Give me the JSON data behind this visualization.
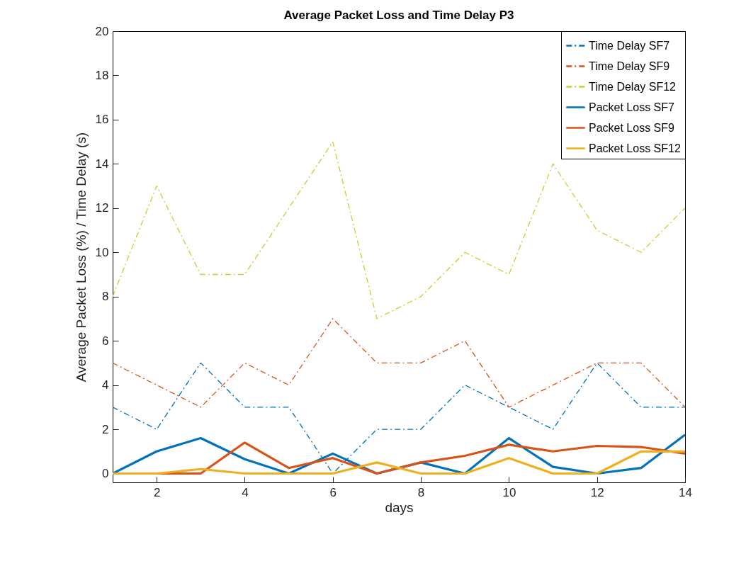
{
  "chart_data": {
    "type": "line",
    "title": "Average Packet Loss and Time Delay P3",
    "xlabel": "days",
    "ylabel": "Average Packet Loss (%) / Time Delay (s)",
    "x": [
      1,
      2,
      3,
      4,
      5,
      6,
      7,
      8,
      9,
      10,
      11,
      12,
      13,
      14
    ],
    "series": [
      {
        "name": "Time Delay SF7",
        "color": "#0072bd",
        "line_style": "dashed",
        "values": [
          3,
          2,
          5,
          3,
          3,
          0,
          2,
          2,
          4,
          3,
          2,
          5,
          3,
          3
        ]
      },
      {
        "name": "Time Delay SF9",
        "color": "#d95319",
        "line_style": "dashed",
        "values": [
          5,
          4,
          3,
          5,
          4,
          7,
          5,
          5,
          6,
          3,
          4,
          5,
          5,
          3
        ]
      },
      {
        "name": "Time Delay SF12",
        "color": "#cccc33",
        "line_style": "dashed",
        "values": [
          8,
          13,
          9,
          9,
          12,
          15,
          7,
          8,
          10,
          9,
          14,
          11,
          10,
          12
        ]
      },
      {
        "name": "Packet Loss SF7",
        "color": "#0072bd",
        "line_style": "solid",
        "values": [
          0,
          1.0,
          1.6,
          0.65,
          0,
          0.9,
          0,
          0.5,
          0,
          1.6,
          0.3,
          0,
          0.25,
          1.75
        ]
      },
      {
        "name": "Packet Loss SF9",
        "color": "#d95319",
        "line_style": "solid",
        "values": [
          0,
          0,
          0,
          1.4,
          0.25,
          0.7,
          0,
          0.5,
          0.8,
          1.3,
          1.0,
          1.25,
          1.2,
          0.9
        ]
      },
      {
        "name": "Packet Loss SF12",
        "color": "#edb120",
        "line_style": "solid",
        "values": [
          0,
          0,
          0.2,
          0,
          0,
          0,
          0.5,
          0,
          0,
          0.7,
          0,
          0,
          1.0,
          1.0
        ]
      }
    ],
    "xlim": [
      1,
      14
    ],
    "xticks": [
      2,
      4,
      6,
      8,
      10,
      12,
      14
    ],
    "ylim": [
      -0.4,
      20
    ],
    "yticks": [
      0,
      2,
      4,
      6,
      8,
      10,
      12,
      14,
      16,
      18,
      20
    ],
    "grid": false,
    "legend": "top right",
    "marker": "none"
  }
}
